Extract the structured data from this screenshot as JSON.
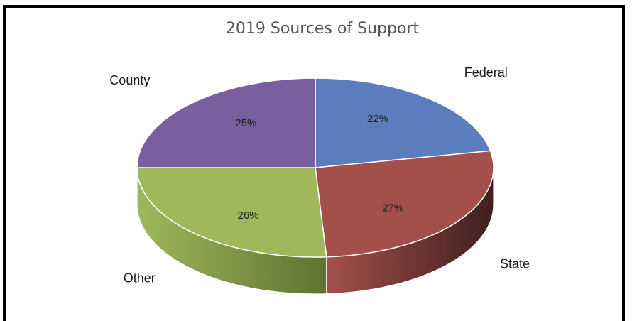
{
  "chart_data": {
    "type": "pie",
    "title": "2019 Sources of Support",
    "slices": [
      {
        "label": "Federal",
        "value": 22,
        "display": "22%",
        "color": "#5b7dbd",
        "side_color": "#2d3f61"
      },
      {
        "label": "State",
        "value": 27,
        "display": "27%",
        "color": "#a3504c",
        "side_color": "#3f1f1e"
      },
      {
        "label": "Other",
        "value": 26,
        "display": "26%",
        "color": "#9eb85a",
        "side_color": "#5f7332"
      },
      {
        "label": "County",
        "value": 25,
        "display": "25%",
        "color": "#7a5fa0",
        "side_color": "#44345a"
      }
    ],
    "start": "12 o'clock",
    "direction": "clockwise",
    "style": "3D pie",
    "legend": "none (category labels outside slices)"
  }
}
